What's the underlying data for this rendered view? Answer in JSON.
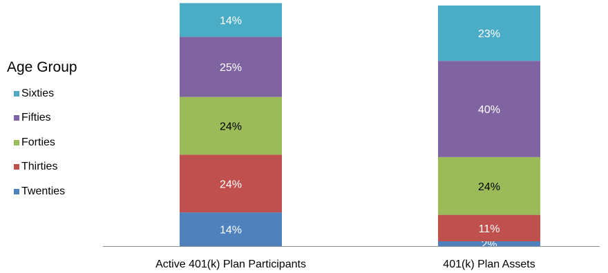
{
  "chart_data": {
    "type": "bar",
    "stacked": true,
    "categories": [
      "Active 401(k) Plan Participants",
      "401(k) Plan Assets"
    ],
    "series": [
      {
        "name": "Twenties",
        "values": [
          14,
          2
        ],
        "labels": [
          "14%",
          "2%"
        ],
        "color": "#4F81BD",
        "label_color": "#ffffff"
      },
      {
        "name": "Thirties",
        "values": [
          24,
          11
        ],
        "labels": [
          "24%",
          "11%"
        ],
        "color": "#C0504D",
        "label_color": "#ffffff"
      },
      {
        "name": "Forties",
        "values": [
          24,
          24
        ],
        "labels": [
          "24%",
          "24%"
        ],
        "color": "#9BBB59",
        "label_color": "#000000"
      },
      {
        "name": "Fifties",
        "values": [
          25,
          40
        ],
        "labels": [
          "25%",
          "40%"
        ],
        "color": "#8064A2",
        "label_color": "#ffffff"
      },
      {
        "name": "Sixties",
        "values": [
          14,
          23
        ],
        "labels": [
          "14%",
          "23%"
        ],
        "color": "#4BACC6",
        "label_color": "#ffffff"
      }
    ],
    "ylim": [
      0,
      100
    ],
    "grid": false,
    "legend": {
      "title": "Age Group",
      "placement": "left",
      "order": [
        "Sixties",
        "Fifties",
        "Forties",
        "Thirties",
        "Twenties"
      ]
    }
  }
}
